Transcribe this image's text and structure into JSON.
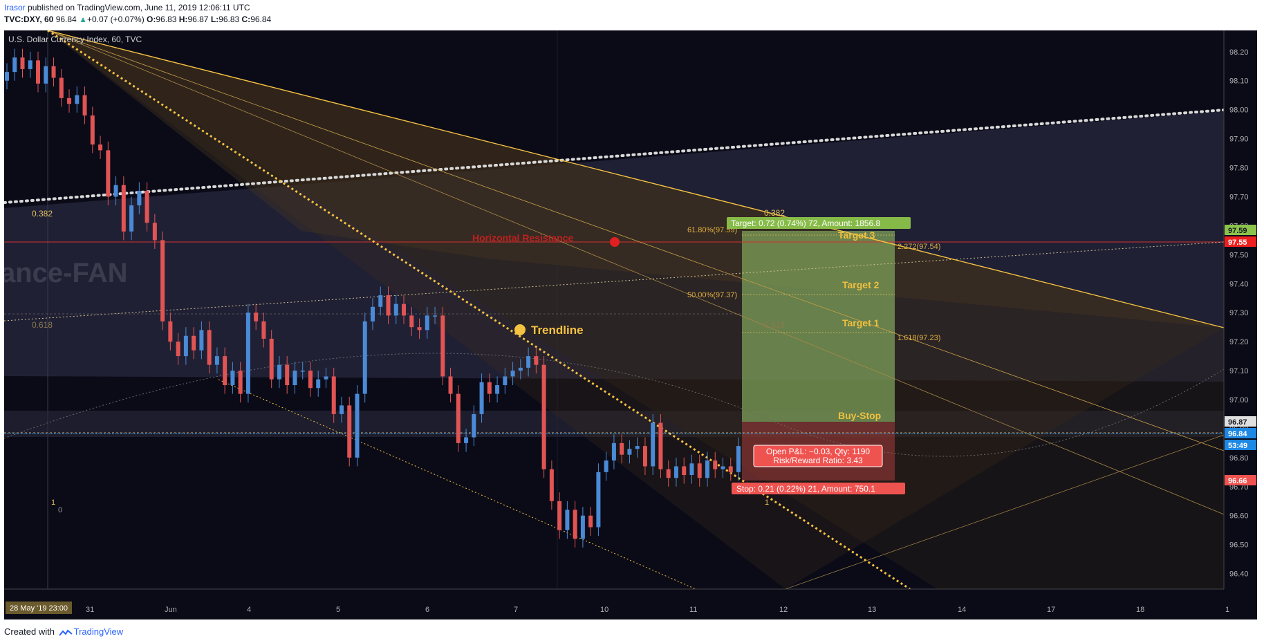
{
  "header": {
    "author": "Irasor",
    "published": " published on TradingView.com, June 11, 2019 12:06:11 UTC",
    "symbol": "TVC:DXY, 60",
    "last": "96.84",
    "change": "+0.07 (+0.07%)",
    "ohlc": {
      "o_label": "O:",
      "o": "96.83",
      "h_label": "H:",
      "h": "96.87",
      "l_label": "L:",
      "l": "96.83",
      "c_label": "C:",
      "c": "96.84"
    }
  },
  "chart_title": "U.S. Dollar Currency Index, 60, TVC",
  "watermark": "ance-FAN",
  "annotations": {
    "horizontal_resistance": "Horizontal Resistance",
    "trendline": "Trendline",
    "target1": "Target 1",
    "target2": "Target 2",
    "target3": "Target 3",
    "buy_stop": "Buy-Stop",
    "target_box": "Target: 0.72 (0.74%) 72, Amount: 1856.8",
    "stop_box": "Stop: 0.21 (0.22%) 21, Amount: 750.1",
    "pnl_line1": "Open P&L: −0.03, Qty: 1190",
    "pnl_line2": "Risk/Reward Ratio: 3.43",
    "fib_618": "61.80%(97.59)",
    "fib_50": "50.00%(97.37)",
    "ext_2272": "2.272(97.54)",
    "ext_1618": "1.618(97.23)",
    "fan_0382_left": "0.382",
    "fan_0618_left": "0.618",
    "fan_1_left": "1",
    "fan_0_left": "0",
    "fan_0382_right": "0.382",
    "fan_0618_right": "0.618",
    "fan_1_right": "1"
  },
  "price_axis": {
    "ticks": [
      "98.20",
      "98.10",
      "98.00",
      "97.90",
      "97.80",
      "97.70",
      "97.60",
      "97.50",
      "97.40",
      "97.30",
      "97.20",
      "97.10",
      "97.00",
      "96.90",
      "96.80",
      "96.70",
      "96.60",
      "96.50",
      "96.40"
    ],
    "badges": [
      {
        "label": "97.59",
        "bg": "#8bc34a",
        "fg": "#131722"
      },
      {
        "label": "97.55",
        "bg": "#ef1f1f",
        "fg": "#ffffff"
      },
      {
        "label": "96.87",
        "bg": "#e0e0e0",
        "fg": "#131722"
      },
      {
        "label": "96.84",
        "bg": "#1e88e5",
        "fg": "#ffffff"
      },
      {
        "label": "53:49",
        "bg": "#1e88e5",
        "fg": "#ffffff"
      },
      {
        "label": "96.66",
        "bg": "#ef5350",
        "fg": "#ffffff"
      }
    ]
  },
  "time_axis": {
    "cursor_label": "28 May '19   23:00",
    "ticks": [
      "31",
      "Jun",
      "4",
      "5",
      "6",
      "7",
      "10",
      "11",
      "12",
      "13",
      "14",
      "17",
      "18",
      "1"
    ]
  },
  "footer": {
    "created_with": "Created with",
    "brand": "TradingView"
  },
  "colors": {
    "bull": "#4a8ad6",
    "bear": "#e05454",
    "trend": "#f5c242",
    "fan": "#d8d8d8",
    "resistance": "#d43030",
    "target_zone": "#7fa35a",
    "stop_zone": "#a43c3c"
  },
  "chart_data": {
    "type": "candlestick",
    "series": [
      {
        "name": "U.S. Dollar Currency Index, 60, TVC",
        "close": [
          98.13,
          98.18,
          98.14,
          98.17,
          98.09,
          98.15,
          98.11,
          98.04,
          98.02,
          98.05,
          97.98,
          97.88,
          97.86,
          97.7,
          97.74,
          97.58,
          97.67,
          97.72,
          97.61,
          97.55,
          97.27,
          97.2,
          97.15,
          97.22,
          97.17,
          97.24,
          97.12,
          97.15,
          97.05,
          97.1,
          97.02,
          97.3,
          97.27,
          97.21,
          97.07,
          97.12,
          97.05,
          97.1,
          97.1,
          97.04,
          97.07,
          97.08,
          96.95,
          96.98,
          96.8,
          97.02,
          97.27,
          97.32,
          97.36,
          97.29,
          97.33,
          97.29,
          97.25,
          97.24,
          97.29,
          97.29,
          97.08,
          97.02,
          96.85,
          96.87,
          96.95,
          97.06,
          97.02,
          97.05,
          97.08,
          97.1,
          97.11,
          97.15,
          97.12,
          96.76,
          96.65,
          96.55,
          96.62,
          96.52,
          96.6,
          96.56,
          96.75,
          96.79,
          96.85,
          96.81,
          96.83,
          96.84,
          96.77,
          96.92,
          96.76,
          96.73,
          96.77,
          96.74,
          96.78,
          96.73,
          96.79,
          96.76,
          96.77,
          96.75,
          96.84
        ]
      }
    ],
    "ylim": [
      96.38,
      98.24
    ],
    "xlabel": "",
    "ylabel": ""
  }
}
